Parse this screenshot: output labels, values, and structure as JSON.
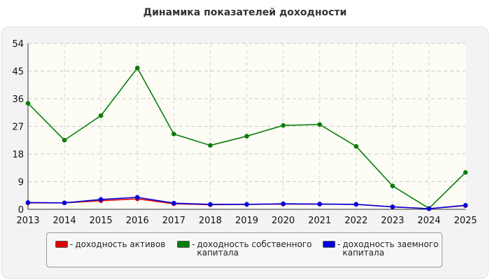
{
  "title": "Динамика показателей доходности",
  "chart_data": {
    "type": "line",
    "title": "Динамика показателей доходности",
    "xlabel": "",
    "ylabel": "",
    "categories": [
      "2013",
      "2014",
      "2015",
      "2016",
      "2017",
      "2018",
      "2019",
      "2020",
      "2021",
      "2022",
      "2023",
      "2024",
      "2025"
    ],
    "yticks": [
      0,
      9,
      18,
      27,
      36,
      45,
      54
    ],
    "ylim": [
      0,
      54
    ],
    "grid": true,
    "legend_position": "bottom",
    "series": [
      {
        "name": "доходность собственного капитала",
        "color": "#0a7d0a",
        "values": [
          34.5,
          22.5,
          30.5,
          46.0,
          24.5,
          20.8,
          23.8,
          27.3,
          27.6,
          20.5,
          7.6,
          0.3,
          12.0
        ]
      },
      {
        "name": "доходность активов",
        "color": "#e00000",
        "values": [
          2.1,
          2.1,
          2.8,
          3.4,
          1.8,
          1.5,
          1.6,
          1.7,
          1.7,
          1.6,
          0.8,
          0.2,
          1.2
        ]
      },
      {
        "name": "доходность заемного капитала",
        "color": "#0000e0",
        "values": [
          2.2,
          2.1,
          3.2,
          3.9,
          2.0,
          1.6,
          1.6,
          1.8,
          1.7,
          1.6,
          0.8,
          0.2,
          1.3
        ]
      }
    ]
  },
  "legend": {
    "prefix": "-",
    "items": [
      {
        "label": "доходность активов",
        "color": "#e00000"
      },
      {
        "label": "доходность собственного капитала",
        "color": "#0a7d0a"
      },
      {
        "label": "доходность заемного капитала",
        "color": "#0000e0"
      }
    ]
  }
}
